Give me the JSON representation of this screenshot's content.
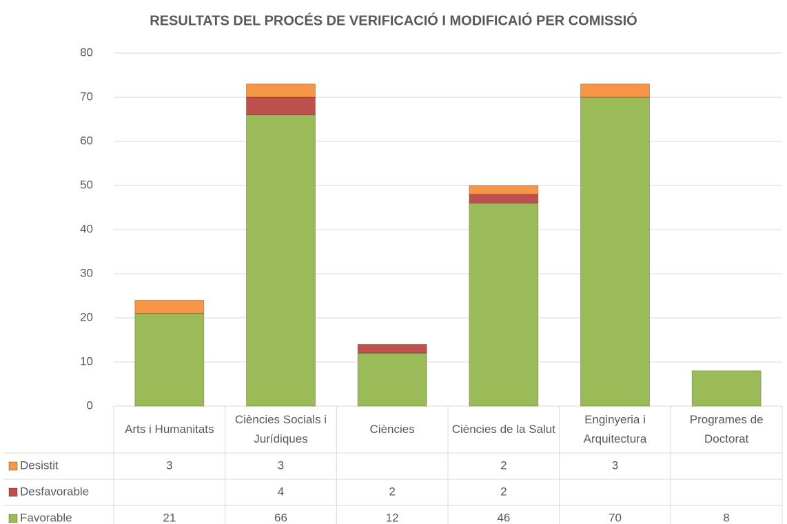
{
  "chart_data": {
    "type": "stacked_bar",
    "title": "RESULTATS DEL PROCÉS DE VERIFICACIÓ I MODIFICAIÓ PER COMISSIÓ",
    "categories": [
      "Arts i Humanitats",
      "Ciències Socials i Jurídiques",
      "Ciències",
      "Ciències de la Salut",
      "Enginyeria i Arquitectura",
      "Programes de Doctorat"
    ],
    "series": [
      {
        "name": "Desistit",
        "color": "#f79646",
        "values": [
          3,
          3,
          null,
          2,
          3,
          null
        ]
      },
      {
        "name": "Desfavorable",
        "color": "#c0504d",
        "values": [
          null,
          4,
          2,
          2,
          null,
          null
        ]
      },
      {
        "name": "Favorable",
        "color": "#9bbb59",
        "values": [
          21,
          66,
          12,
          46,
          70,
          8
        ]
      }
    ],
    "ylim": [
      0,
      80
    ],
    "yticks": [
      0,
      10,
      20,
      30,
      40,
      50,
      60,
      70,
      80
    ],
    "grid": true
  }
}
